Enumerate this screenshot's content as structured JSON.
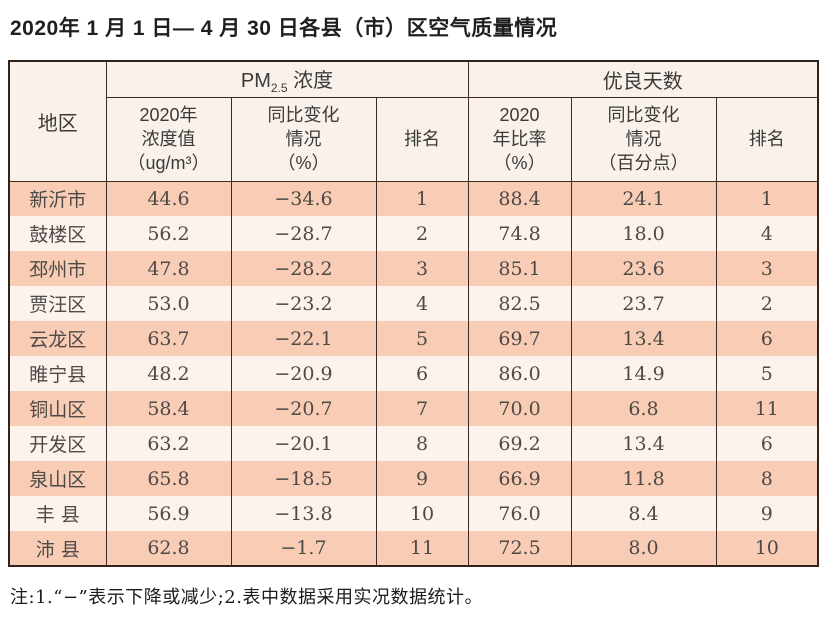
{
  "page": {
    "title": "2020年 1 月 1 日— 4 月 30 日各县（市）区空气质量情况",
    "note": "注:1.“−”表示下降或减少;2.表中数据采用实况数据统计。"
  },
  "colors": {
    "row_peach": "#f8ccb5",
    "row_light": "#fdf3ed",
    "header_bg": "#faf2ea",
    "border_dark": "#33231d"
  },
  "table": {
    "type": "table",
    "corner_header": "地区",
    "pm_group": {
      "main": "PM",
      "sub": "2.5",
      "rest": " 浓度"
    },
    "good_group": "优良天数",
    "sub_headers": {
      "pm_value": "2020年\n浓度值\n（ug/m³）",
      "pm_change": "同比变化\n情况\n（%）",
      "pm_rank": "排名",
      "good_ratio": "2020\n年比率\n（%）",
      "good_change": "同比变化\n情况\n（百分点）",
      "good_rank": "排名"
    },
    "rows": [
      {
        "region": "新沂市",
        "pm_value": "44.6",
        "pm_change": "−34.6",
        "pm_rank": "1",
        "good_ratio": "88.4",
        "good_change": "24.1",
        "good_rank": "1"
      },
      {
        "region": "鼓楼区",
        "pm_value": "56.2",
        "pm_change": "−28.7",
        "pm_rank": "2",
        "good_ratio": "74.8",
        "good_change": "18.0",
        "good_rank": "4"
      },
      {
        "region": "邳州市",
        "pm_value": "47.8",
        "pm_change": "−28.2",
        "pm_rank": "3",
        "good_ratio": "85.1",
        "good_change": "23.6",
        "good_rank": "3"
      },
      {
        "region": "贾汪区",
        "pm_value": "53.0",
        "pm_change": "−23.2",
        "pm_rank": "4",
        "good_ratio": "82.5",
        "good_change": "23.7",
        "good_rank": "2"
      },
      {
        "region": "云龙区",
        "pm_value": "63.7",
        "pm_change": "−22.1",
        "pm_rank": "5",
        "good_ratio": "69.7",
        "good_change": "13.4",
        "good_rank": "6"
      },
      {
        "region": "睢宁县",
        "pm_value": "48.2",
        "pm_change": "−20.9",
        "pm_rank": "6",
        "good_ratio": "86.0",
        "good_change": "14.9",
        "good_rank": "5"
      },
      {
        "region": "铜山区",
        "pm_value": "58.4",
        "pm_change": "−20.7",
        "pm_rank": "7",
        "good_ratio": "70.0",
        "good_change": "6.8",
        "good_rank": "11"
      },
      {
        "region": "开发区",
        "pm_value": "63.2",
        "pm_change": "−20.1",
        "pm_rank": "8",
        "good_ratio": "69.2",
        "good_change": "13.4",
        "good_rank": "6"
      },
      {
        "region": "泉山区",
        "pm_value": "65.8",
        "pm_change": "−18.5",
        "pm_rank": "9",
        "good_ratio": "66.9",
        "good_change": "11.8",
        "good_rank": "8"
      },
      {
        "region": "丰 县",
        "pm_value": "56.9",
        "pm_change": "−13.8",
        "pm_rank": "10",
        "good_ratio": "76.0",
        "good_change": "8.4",
        "good_rank": "9"
      },
      {
        "region": "沛 县",
        "pm_value": "62.8",
        "pm_change": "−1.7",
        "pm_rank": "11",
        "good_ratio": "72.5",
        "good_change": "8.0",
        "good_rank": "10"
      }
    ]
  }
}
